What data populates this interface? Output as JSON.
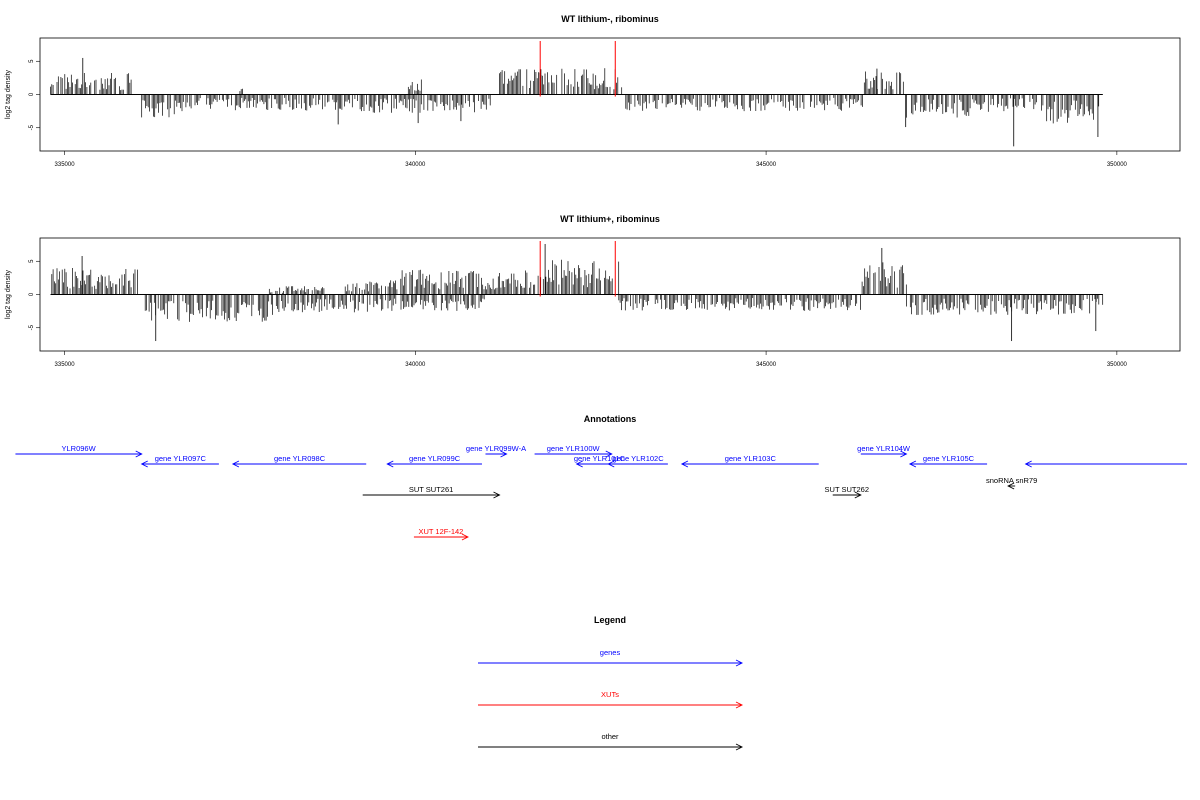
{
  "chart_data": [
    {
      "type": "bar",
      "title": "WT lithium-, ribominus",
      "ylabel": "log2 tag density",
      "xlim": [
        334650,
        350900
      ],
      "ylim": [
        -8.5,
        8.5
      ],
      "xticks": [
        335000,
        340000,
        345000,
        350000
      ],
      "yticks": [
        -5,
        0,
        5
      ],
      "markers_color": "#ff0000",
      "markers": [
        341780,
        342850
      ],
      "plus_regions": [
        [
          334800,
          335950,
          2.6
        ],
        [
          337500,
          337550,
          1.0
        ],
        [
          339900,
          340100,
          1.8
        ],
        [
          341200,
          342950,
          3.2
        ],
        [
          346400,
          346980,
          2.8
        ]
      ],
      "minus_regions": [
        [
          336100,
          336600,
          -2.8
        ],
        [
          336600,
          339400,
          -2.0
        ],
        [
          339400,
          341100,
          -2.2
        ],
        [
          343000,
          346400,
          -2.0
        ],
        [
          347000,
          348000,
          -2.8
        ],
        [
          348000,
          349000,
          -2.2
        ],
        [
          349000,
          349750,
          -3.5
        ]
      ],
      "peaks": [
        [
          335260,
          5.5
        ],
        [
          341790,
          3.8
        ],
        [
          346580,
          3.9
        ],
        [
          348530,
          -7.8
        ],
        [
          349730,
          -6.4
        ],
        [
          338900,
          -4.5
        ],
        [
          340040,
          -4.3
        ],
        [
          340650,
          -4.0
        ],
        [
          346990,
          -4.9
        ]
      ]
    },
    {
      "type": "bar",
      "title": "WT lithium+, ribominus",
      "ylabel": "log2 tag density",
      "xlim": [
        334650,
        350900
      ],
      "ylim": [
        -8.5,
        8.5
      ],
      "xticks": [
        335000,
        340000,
        345000,
        350000
      ],
      "yticks": [
        -5,
        0,
        5
      ],
      "markers_color": "#ff0000",
      "markers": [
        341780,
        342850
      ],
      "plus_regions": [
        [
          334800,
          336050,
          3.2
        ],
        [
          337900,
          338700,
          1.0
        ],
        [
          339000,
          339700,
          1.8
        ],
        [
          339700,
          341750,
          3.0
        ],
        [
          341750,
          342900,
          4.2
        ],
        [
          346350,
          347000,
          4.0
        ]
      ],
      "minus_regions": [
        [
          336150,
          338000,
          -3.4
        ],
        [
          338000,
          339500,
          -2.2
        ],
        [
          339500,
          341000,
          -2.0
        ],
        [
          342900,
          346350,
          -2.0
        ],
        [
          347000,
          349800,
          -2.5
        ]
      ],
      "peaks": [
        [
          335250,
          5.8
        ],
        [
          341850,
          7.6
        ],
        [
          346650,
          7.0
        ],
        [
          336300,
          -7.0
        ],
        [
          348500,
          -7.0
        ],
        [
          349700,
          -5.5
        ]
      ]
    }
  ],
  "annotations": {
    "title": "Annotations",
    "xlim": [
      334650,
      350900
    ],
    "features": [
      {
        "label": "YLR096W",
        "start": 334300,
        "end": 336100,
        "strand": "+",
        "row": 0,
        "color": "#0000ff"
      },
      {
        "label": "gene YLR097C",
        "start": 336100,
        "end": 337200,
        "strand": "-",
        "row": 1,
        "color": "#0000ff"
      },
      {
        "label": "gene YLR098C",
        "start": 337400,
        "end": 339300,
        "strand": "-",
        "row": 1,
        "color": "#0000ff"
      },
      {
        "label": "gene YLR099C",
        "start": 339600,
        "end": 340950,
        "strand": "-",
        "row": 1,
        "color": "#0000ff"
      },
      {
        "label": "gene YLR099W-A",
        "start": 341000,
        "end": 341300,
        "strand": "+",
        "row": 0,
        "color": "#0000ff"
      },
      {
        "label": "gene YLR100W",
        "start": 341700,
        "end": 342800,
        "strand": "+",
        "row": 0,
        "color": "#0000ff"
      },
      {
        "label": "gene YLR101C",
        "start": 342300,
        "end": 342950,
        "strand": "-",
        "row": 1,
        "color": "#0000ff"
      },
      {
        "label": "gene YLR102C",
        "start": 342750,
        "end": 343600,
        "strand": "-",
        "row": 1,
        "color": "#0000ff"
      },
      {
        "label": "gene YLR103C",
        "start": 343800,
        "end": 345750,
        "strand": "-",
        "row": 1,
        "color": "#0000ff"
      },
      {
        "label": "gene YLR104W",
        "start": 346350,
        "end": 347000,
        "strand": "+",
        "row": 0,
        "color": "#0000ff"
      },
      {
        "label": "gene YLR105C",
        "start": 347050,
        "end": 348150,
        "strand": "-",
        "row": 1,
        "color": "#0000ff"
      },
      {
        "label": "",
        "start": 348700,
        "end": 351000,
        "strand": "-",
        "row": 1,
        "color": "#0000ff"
      },
      {
        "label": "snoRNA snR79",
        "start": 348450,
        "end": 348550,
        "strand": "-",
        "row": 2,
        "color": "#000000"
      },
      {
        "label": "SUT SUT261",
        "start": 339250,
        "end": 341200,
        "strand": "+",
        "row": 3,
        "color": "#000000"
      },
      {
        "label": "SUT SUT262",
        "start": 345950,
        "end": 346350,
        "strand": "+",
        "row": 3,
        "color": "#000000"
      },
      {
        "label": "XUT 12F-142",
        "start": 339980,
        "end": 340750,
        "strand": "+",
        "row": 4,
        "color": "#ff0000"
      }
    ]
  },
  "legend": {
    "title": "Legend",
    "items": [
      {
        "label": "genes",
        "color": "#0000ff"
      },
      {
        "label": "XUTs",
        "color": "#ff0000"
      },
      {
        "label": "other",
        "color": "#000000"
      }
    ]
  }
}
